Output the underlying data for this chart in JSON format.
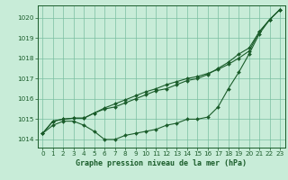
{
  "title": "Graphe pression niveau de la mer (hPa)",
  "bg_color": "#c8ecd8",
  "grid_color": "#7abfa0",
  "line_color": "#1a5c2a",
  "xlim": [
    -0.5,
    23.5
  ],
  "ylim": [
    1013.6,
    1020.6
  ],
  "yticks": [
    1014,
    1015,
    1016,
    1017,
    1018,
    1019,
    1020
  ],
  "xticks": [
    0,
    1,
    2,
    3,
    4,
    5,
    6,
    7,
    8,
    9,
    10,
    11,
    12,
    13,
    14,
    15,
    16,
    17,
    18,
    19,
    20,
    21,
    22,
    23
  ],
  "series": [
    [
      1014.3,
      1014.7,
      1014.9,
      1014.9,
      1014.7,
      1014.4,
      1014.0,
      1014.0,
      1014.2,
      1014.3,
      1014.4,
      1014.5,
      1014.7,
      1014.8,
      1015.0,
      1015.0,
      1015.1,
      1015.6,
      1016.5,
      1017.3,
      1018.2,
      1019.2,
      1019.9,
      1020.4
    ],
    [
      1014.3,
      1014.9,
      1015.0,
      1015.05,
      1015.05,
      1015.3,
      1015.5,
      1015.6,
      1015.8,
      1016.0,
      1016.2,
      1016.4,
      1016.5,
      1016.7,
      1016.9,
      1017.0,
      1017.2,
      1017.5,
      1017.8,
      1018.2,
      1018.5,
      1019.3,
      1019.9,
      1020.4
    ],
    [
      1014.3,
      1014.9,
      1015.0,
      1015.05,
      1015.05,
      1015.3,
      1015.55,
      1015.75,
      1015.95,
      1016.15,
      1016.35,
      1016.5,
      1016.7,
      1016.85,
      1017.0,
      1017.1,
      1017.25,
      1017.45,
      1017.7,
      1018.0,
      1018.35,
      1019.3,
      1019.9,
      1020.4
    ]
  ]
}
